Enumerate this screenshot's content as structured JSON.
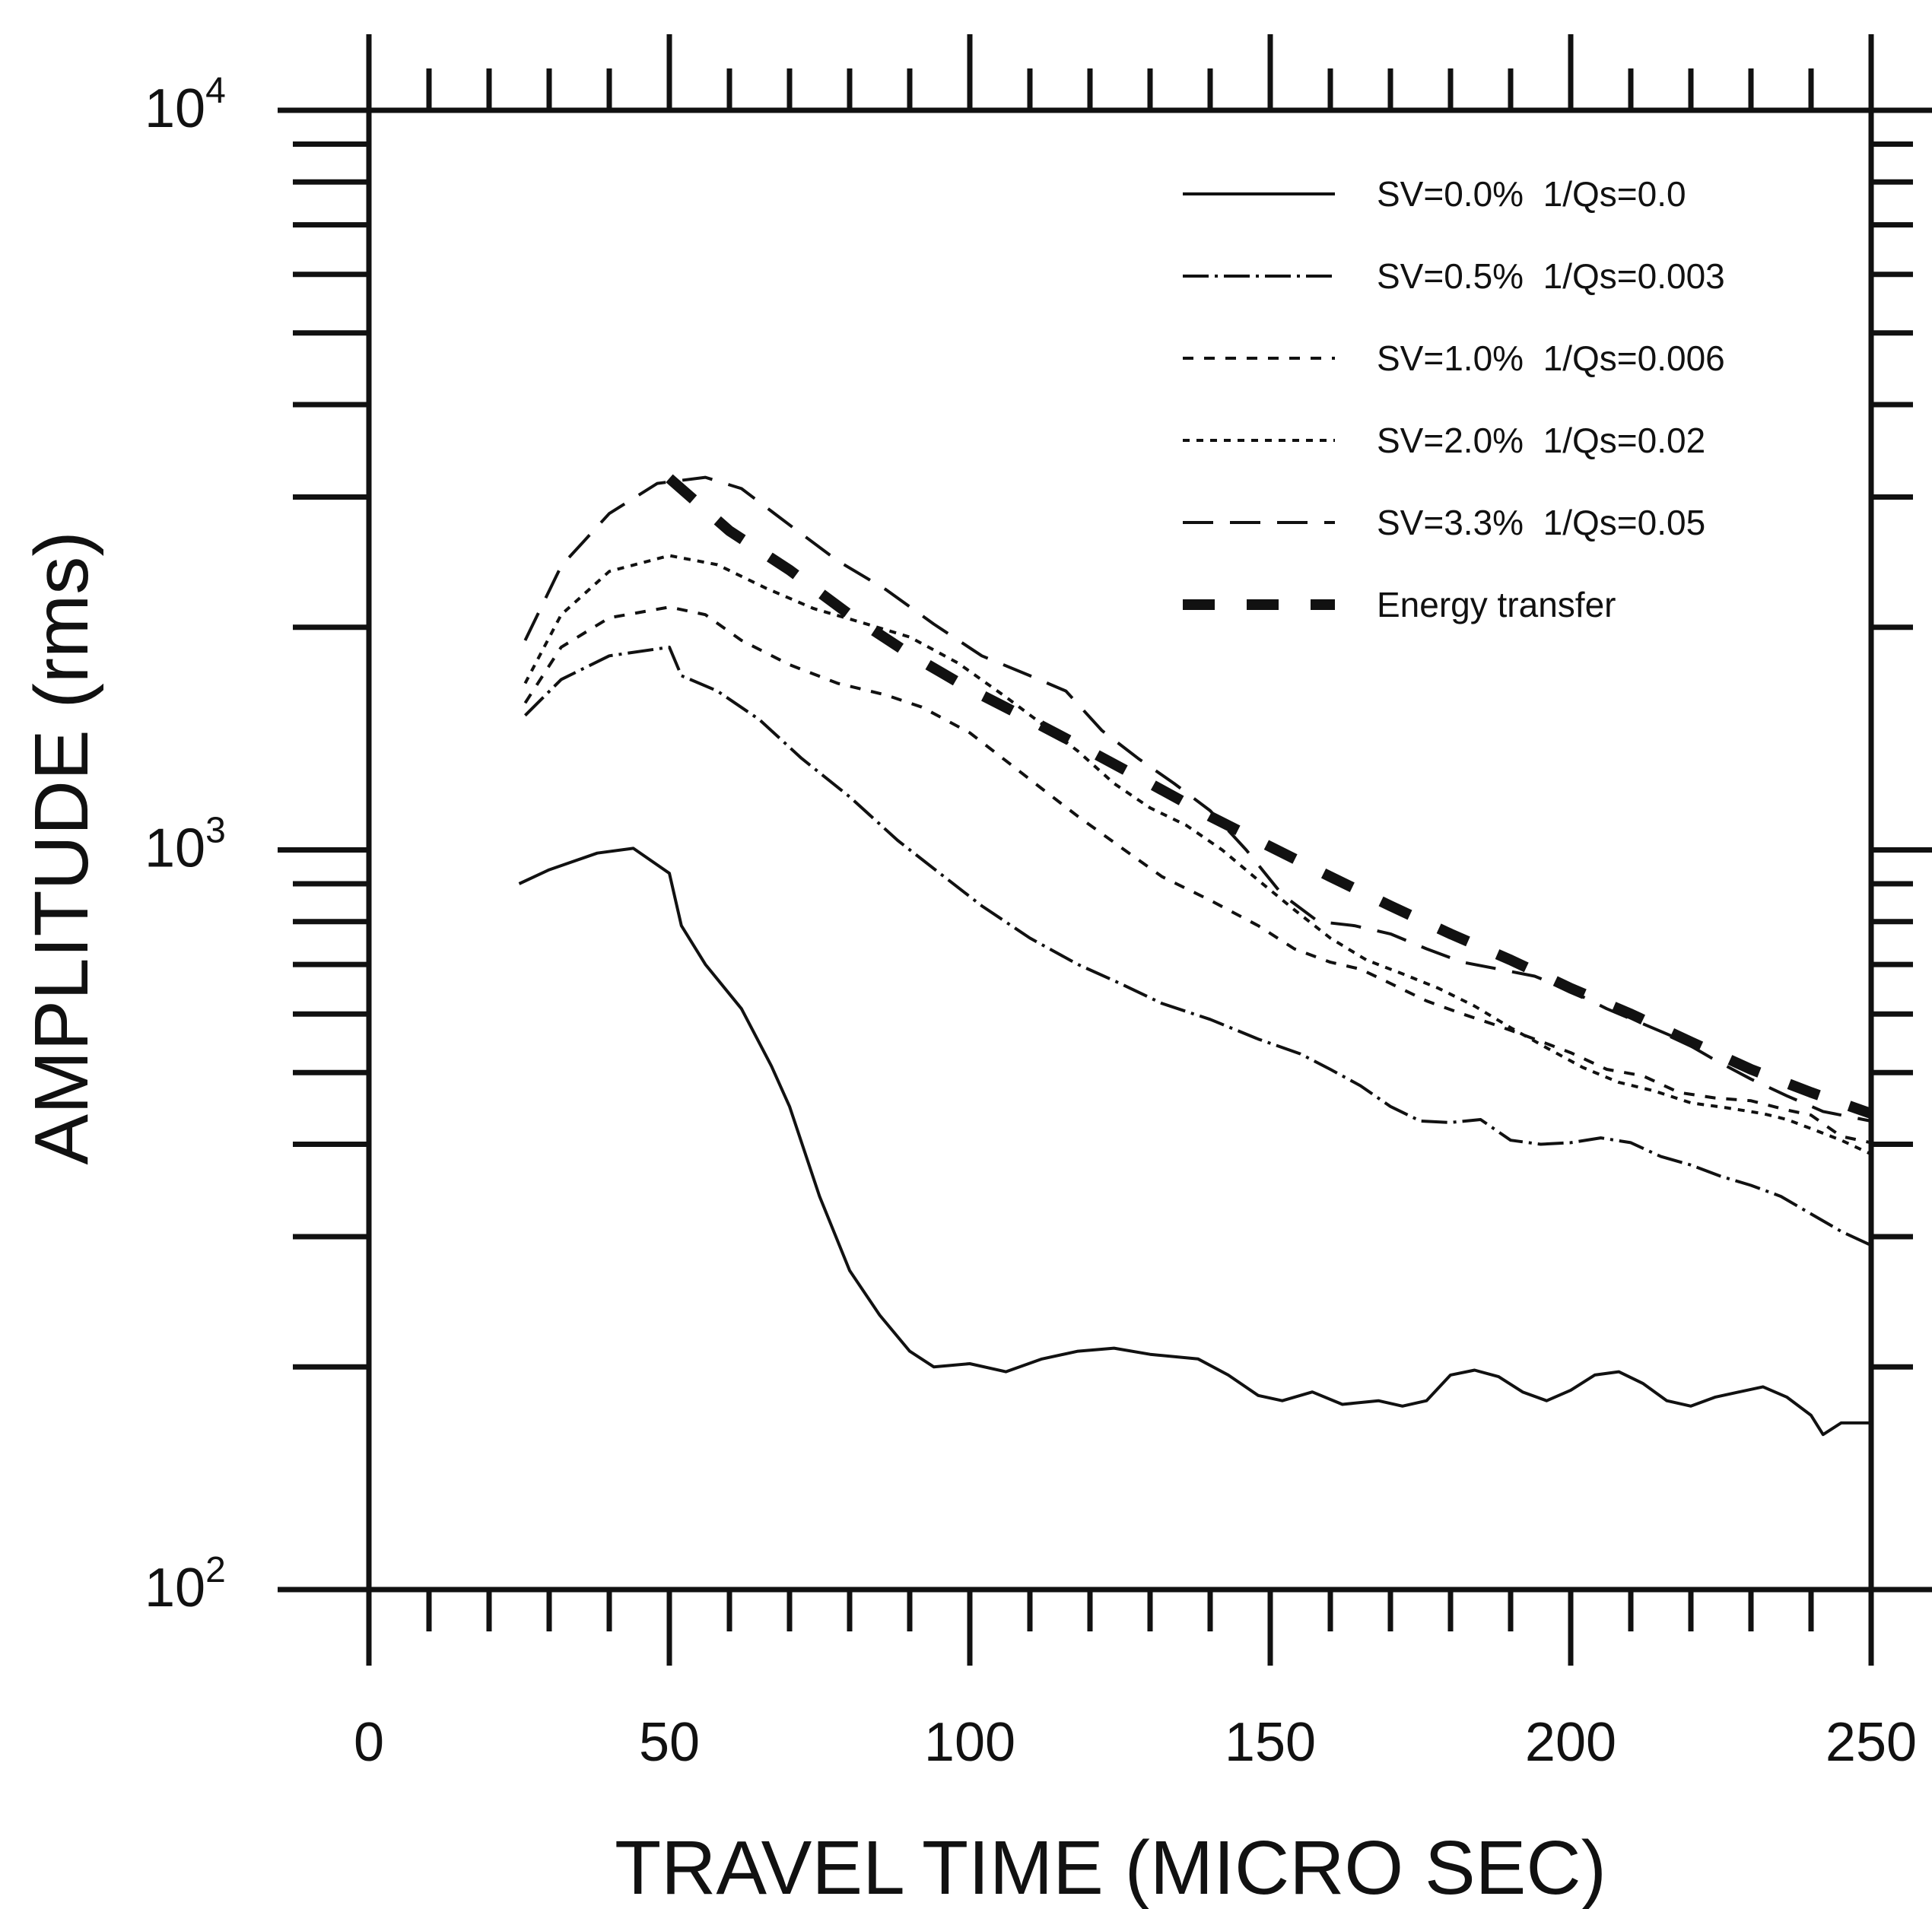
{
  "chart_data": {
    "type": "line",
    "xlabel": "TRAVEL TIME (MICRO SEC)",
    "ylabel": "AMPLITUDE (rms)",
    "xlim": [
      0,
      250
    ],
    "ylim": [
      100,
      10000
    ],
    "yscale": "log",
    "x_ticks": [
      "0",
      "50",
      "100",
      "150",
      "200",
      "250"
    ],
    "y_ticks": [
      {
        "base": "10",
        "exp": "2",
        "value": 100
      },
      {
        "base": "10",
        "exp": "3",
        "value": 1000
      },
      {
        "base": "10",
        "exp": "4",
        "value": 10000
      }
    ],
    "legend_position": "top-right",
    "grid": false,
    "series": [
      {
        "name": "SV=0.0%  1/Qs=0.0",
        "style": "solid",
        "points": [
          [
            25,
            900
          ],
          [
            30,
            940
          ],
          [
            38,
            990
          ],
          [
            44,
            1005
          ],
          [
            50,
            930
          ],
          [
            52,
            790
          ],
          [
            56,
            700
          ],
          [
            62,
            610
          ],
          [
            67,
            510
          ],
          [
            70,
            450
          ],
          [
            75,
            340
          ],
          [
            80,
            270
          ],
          [
            85,
            235
          ],
          [
            90,
            210
          ],
          [
            94,
            200
          ],
          [
            100,
            202
          ],
          [
            106,
            197
          ],
          [
            112,
            205
          ],
          [
            118,
            210
          ],
          [
            124,
            212
          ],
          [
            130,
            208
          ],
          [
            138,
            205
          ],
          [
            143,
            195
          ],
          [
            148,
            183
          ],
          [
            152,
            180
          ],
          [
            157,
            185
          ],
          [
            162,
            178
          ],
          [
            168,
            180
          ],
          [
            172,
            177
          ],
          [
            176,
            180
          ],
          [
            180,
            195
          ],
          [
            184,
            198
          ],
          [
            188,
            194
          ],
          [
            192,
            185
          ],
          [
            196,
            180
          ],
          [
            200,
            186
          ],
          [
            204,
            195
          ],
          [
            208,
            197
          ],
          [
            212,
            190
          ],
          [
            216,
            180
          ],
          [
            220,
            177
          ],
          [
            224,
            182
          ],
          [
            228,
            185
          ],
          [
            232,
            188
          ],
          [
            236,
            182
          ],
          [
            240,
            172
          ],
          [
            242,
            162
          ],
          [
            245,
            168
          ],
          [
            250,
            168
          ]
        ]
      },
      {
        "name": "SV=0.5%  1/Qs=0.003",
        "style": "dash-dot",
        "points": [
          [
            26,
            1520
          ],
          [
            32,
            1700
          ],
          [
            40,
            1830
          ],
          [
            50,
            1880
          ],
          [
            52,
            1720
          ],
          [
            58,
            1640
          ],
          [
            65,
            1500
          ],
          [
            72,
            1330
          ],
          [
            80,
            1180
          ],
          [
            88,
            1030
          ],
          [
            95,
            930
          ],
          [
            102,
            840
          ],
          [
            110,
            760
          ],
          [
            118,
            700
          ],
          [
            125,
            660
          ],
          [
            132,
            620
          ],
          [
            140,
            590
          ],
          [
            148,
            555
          ],
          [
            155,
            530
          ],
          [
            160,
            505
          ],
          [
            165,
            480
          ],
          [
            170,
            450
          ],
          [
            175,
            430
          ],
          [
            180,
            428
          ],
          [
            185,
            432
          ],
          [
            190,
            405
          ],
          [
            195,
            400
          ],
          [
            200,
            402
          ],
          [
            205,
            408
          ],
          [
            210,
            402
          ],
          [
            215,
            385
          ],
          [
            220,
            375
          ],
          [
            225,
            362
          ],
          [
            230,
            352
          ],
          [
            235,
            340
          ],
          [
            240,
            322
          ],
          [
            245,
            305
          ],
          [
            250,
            292
          ]
        ]
      },
      {
        "name": "SV=1.0%  1/Qs=0.006",
        "style": "dashed",
        "points": [
          [
            26,
            1580
          ],
          [
            32,
            1880
          ],
          [
            40,
            2060
          ],
          [
            50,
            2130
          ],
          [
            56,
            2080
          ],
          [
            62,
            1920
          ],
          [
            70,
            1780
          ],
          [
            78,
            1680
          ],
          [
            86,
            1620
          ],
          [
            92,
            1560
          ],
          [
            100,
            1440
          ],
          [
            106,
            1320
          ],
          [
            112,
            1210
          ],
          [
            118,
            1110
          ],
          [
            125,
            1010
          ],
          [
            132,
            920
          ],
          [
            140,
            855
          ],
          [
            148,
            790
          ],
          [
            154,
            735
          ],
          [
            160,
            705
          ],
          [
            165,
            690
          ],
          [
            170,
            660
          ],
          [
            176,
            625
          ],
          [
            182,
            600
          ],
          [
            188,
            578
          ],
          [
            194,
            555
          ],
          [
            200,
            532
          ],
          [
            206,
            505
          ],
          [
            212,
            495
          ],
          [
            218,
            470
          ],
          [
            224,
            462
          ],
          [
            230,
            458
          ],
          [
            236,
            445
          ],
          [
            240,
            438
          ],
          [
            245,
            410
          ],
          [
            250,
            402
          ]
        ]
      },
      {
        "name": "SV=2.0%  1/Qs=0.02",
        "style": "dotted",
        "points": [
          [
            26,
            1680
          ],
          [
            32,
            2080
          ],
          [
            40,
            2380
          ],
          [
            50,
            2500
          ],
          [
            58,
            2430
          ],
          [
            66,
            2260
          ],
          [
            74,
            2120
          ],
          [
            82,
            2030
          ],
          [
            90,
            1940
          ],
          [
            98,
            1790
          ],
          [
            106,
            1610
          ],
          [
            112,
            1480
          ],
          [
            118,
            1360
          ],
          [
            124,
            1230
          ],
          [
            130,
            1140
          ],
          [
            136,
            1080
          ],
          [
            142,
            1000
          ],
          [
            148,
            910
          ],
          [
            154,
            830
          ],
          [
            160,
            760
          ],
          [
            166,
            710
          ],
          [
            172,
            680
          ],
          [
            178,
            650
          ],
          [
            184,
            615
          ],
          [
            190,
            575
          ],
          [
            196,
            540
          ],
          [
            202,
            508
          ],
          [
            208,
            485
          ],
          [
            214,
            472
          ],
          [
            220,
            455
          ],
          [
            226,
            448
          ],
          [
            232,
            440
          ],
          [
            236,
            432
          ],
          [
            240,
            420
          ],
          [
            245,
            405
          ],
          [
            250,
            388
          ]
        ]
      },
      {
        "name": "SV=3.3%  1/Qs=0.05",
        "style": "long-dash",
        "points": [
          [
            26,
            1920
          ],
          [
            32,
            2420
          ],
          [
            40,
            2850
          ],
          [
            48,
            3130
          ],
          [
            56,
            3190
          ],
          [
            62,
            3080
          ],
          [
            70,
            2750
          ],
          [
            78,
            2460
          ],
          [
            86,
            2250
          ],
          [
            94,
            2020
          ],
          [
            102,
            1830
          ],
          [
            110,
            1720
          ],
          [
            116,
            1640
          ],
          [
            122,
            1450
          ],
          [
            128,
            1330
          ],
          [
            134,
            1230
          ],
          [
            140,
            1130
          ],
          [
            146,
            1000
          ],
          [
            152,
            870
          ],
          [
            158,
            800
          ],
          [
            164,
            790
          ],
          [
            170,
            770
          ],
          [
            176,
            735
          ],
          [
            182,
            705
          ],
          [
            188,
            690
          ],
          [
            194,
            675
          ],
          [
            200,
            645
          ],
          [
            206,
            610
          ],
          [
            212,
            582
          ],
          [
            218,
            555
          ],
          [
            224,
            520
          ],
          [
            230,
            490
          ],
          [
            236,
            465
          ],
          [
            242,
            443
          ],
          [
            250,
            430
          ]
        ]
      },
      {
        "name": "Energy transfer",
        "style": "thick-dash",
        "points": [
          [
            50,
            3180
          ],
          [
            60,
            2700
          ],
          [
            70,
            2390
          ],
          [
            80,
            2080
          ],
          [
            90,
            1840
          ],
          [
            100,
            1650
          ],
          [
            110,
            1500
          ],
          [
            120,
            1360
          ],
          [
            130,
            1230
          ],
          [
            140,
            1110
          ],
          [
            150,
            1010
          ],
          [
            160,
            920
          ],
          [
            170,
            840
          ],
          [
            180,
            770
          ],
          [
            190,
            710
          ],
          [
            200,
            650
          ],
          [
            210,
            600
          ],
          [
            220,
            550
          ],
          [
            230,
            505
          ],
          [
            240,
            470
          ],
          [
            250,
            440
          ]
        ]
      }
    ]
  }
}
